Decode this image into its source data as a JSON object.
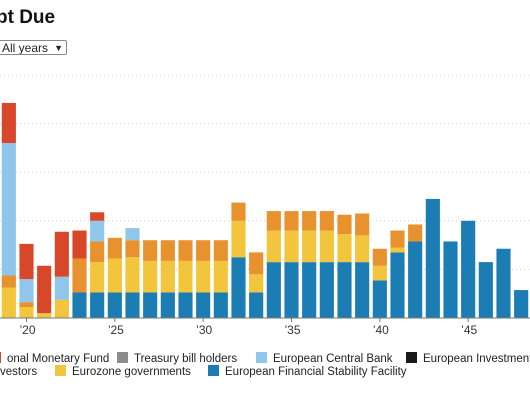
{
  "header": {
    "title": "bt Due"
  },
  "filter": {
    "selected": "All years"
  },
  "colors": {
    "International Monetary Fund": "#d9472b",
    "Treasury bill holders": "#8c8c8c",
    "European Central Bank": "#8fc6ea",
    "European Investment Bank": "#1a1a1a",
    "Private investors": "#e7912f",
    "Eurozone governments": "#f2c53d",
    "European Financial Stability Facility": "#1b7db4"
  },
  "legend": [
    {
      "label": "onal Monetary Fund",
      "color_key": "International Monetary Fund"
    },
    {
      "label": "Treasury bill holders",
      "color_key": "Treasury bill holders"
    },
    {
      "label": "European Central Bank",
      "color_key": "European Central Bank"
    },
    {
      "label": "European Investment",
      "color_key": "European Investment Bank"
    },
    {
      "label": "vestors",
      "color_key": "Private investors"
    },
    {
      "label": "Eurozone governments",
      "color_key": "Eurozone governments"
    },
    {
      "label": "European Financial Stability Facility",
      "color_key": "European Financial Stability Facility"
    }
  ],
  "chart_data": {
    "type": "bar",
    "stacked": true,
    "grid": true,
    "xlim": [
      2018.5,
      2048.5
    ],
    "ylim": [
      0,
      20
    ],
    "x_ticks": [
      {
        "year": 2020,
        "label": "’20"
      },
      {
        "year": 2025,
        "label": "’25"
      },
      {
        "year": 2030,
        "label": "’30"
      },
      {
        "year": 2035,
        "label": "’35"
      },
      {
        "year": 2040,
        "label": "’40"
      },
      {
        "year": 2045,
        "label": "’45"
      }
    ],
    "categories": [
      2019,
      2020,
      2021,
      2022,
      2023,
      2024,
      2025,
      2026,
      2027,
      2028,
      2029,
      2030,
      2031,
      2032,
      2033,
      2034,
      2035,
      2036,
      2037,
      2038,
      2039,
      2040,
      2041,
      2042,
      2043,
      2044,
      2045,
      2046,
      2047,
      2048
    ],
    "series": [
      {
        "name": "European Financial Stability Facility",
        "values": [
          0,
          0,
          0,
          0,
          2.1,
          2.1,
          2.1,
          2.1,
          2.1,
          2.1,
          2.1,
          2.1,
          2.1,
          5.0,
          2.1,
          4.6,
          4.6,
          4.6,
          4.6,
          4.6,
          4.6,
          3.1,
          5.4,
          6.3,
          9.8,
          6.3,
          8.0,
          4.6,
          5.7,
          2.3
        ]
      },
      {
        "name": "Eurozone governments",
        "values": [
          2.5,
          0.9,
          0.4,
          1.5,
          0,
          2.5,
          2.8,
          2.9,
          2.6,
          2.6,
          2.6,
          2.6,
          2.6,
          3.0,
          1.5,
          2.6,
          2.6,
          2.6,
          2.6,
          2.3,
          2.2,
          1.2,
          0.4,
          0,
          0,
          0,
          0,
          0,
          0,
          0
        ]
      },
      {
        "name": "Private investors",
        "values": [
          1.0,
          0.4,
          0,
          0,
          2.8,
          1.7,
          1.7,
          1.4,
          1.7,
          1.7,
          1.7,
          1.7,
          1.7,
          1.5,
          1.8,
          1.6,
          1.6,
          1.6,
          1.6,
          1.6,
          1.8,
          1.4,
          1.4,
          1.4,
          0,
          0,
          0,
          0,
          0,
          0
        ]
      },
      {
        "name": "European Central Bank",
        "values": [
          10.9,
          1.9,
          0,
          1.9,
          0,
          1.7,
          0,
          1.0,
          0,
          0,
          0,
          0,
          0,
          0,
          0,
          0,
          0,
          0,
          0,
          0,
          0,
          0,
          0,
          0,
          0,
          0,
          0,
          0,
          0,
          0
        ]
      },
      {
        "name": "International Monetary Fund",
        "values": [
          3.3,
          2.9,
          3.9,
          3.7,
          2.3,
          0.7,
          0,
          0,
          0,
          0,
          0,
          0,
          0,
          0,
          0,
          0,
          0,
          0,
          0,
          0,
          0,
          0,
          0,
          0,
          0,
          0,
          0,
          0,
          0,
          0
        ]
      }
    ]
  }
}
